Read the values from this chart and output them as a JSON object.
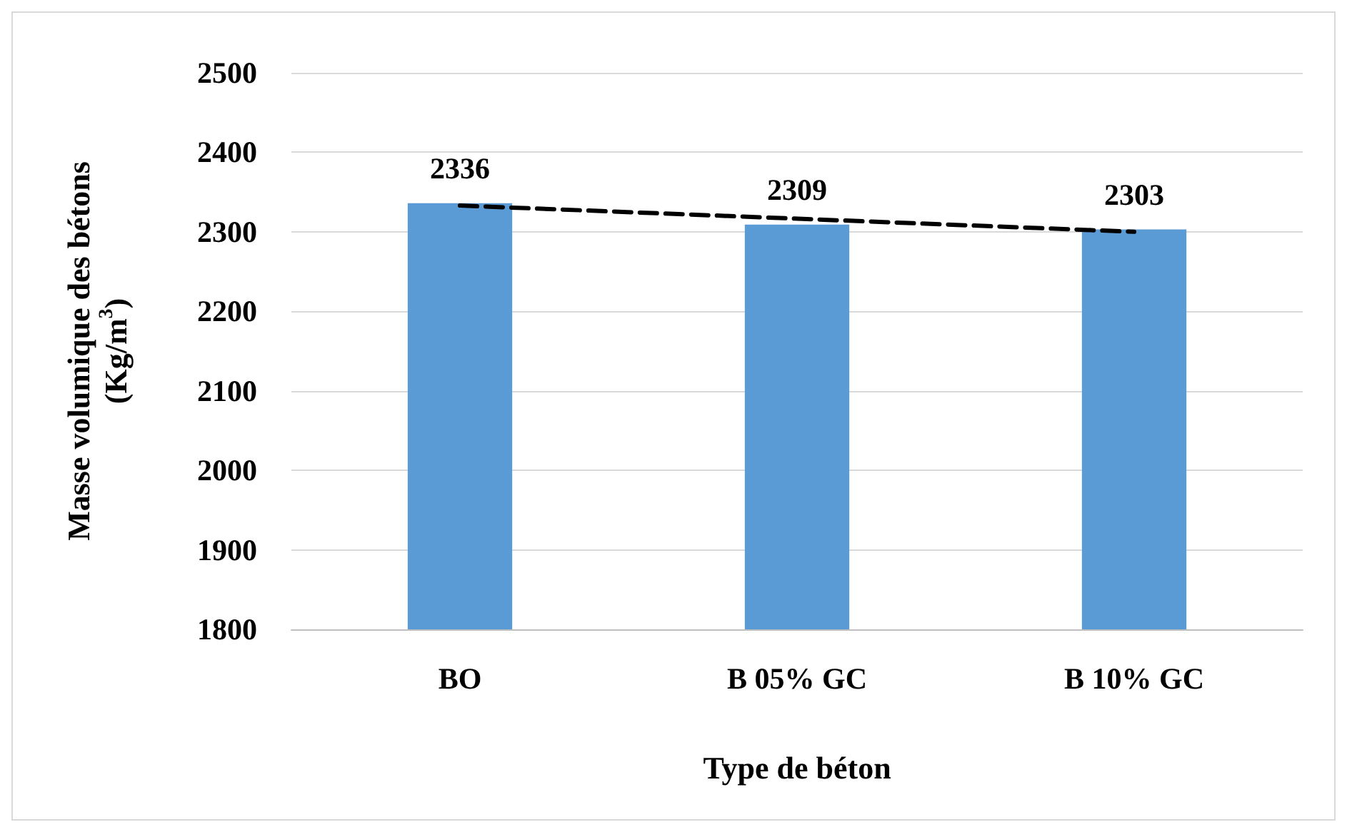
{
  "chart_data": {
    "type": "bar",
    "xlabel": "Type de béton",
    "ylabel": "Masse volumique des bétons (Kg/m$^{3}$)",
    "categories": [
      "BO",
      "B 05% GC",
      "B 10% GC"
    ],
    "series": [
      {
        "color": "#5b9bd5",
        "values": [
          2336,
          2309,
          2303
        ],
        "value_labels": [
          "2336",
          "2309",
          "2303"
        ]
      },
      {
        "type": "line",
        "x": [
          "BO",
          "B 10% GC"
        ],
        "values": [
          2333,
          2300
        ],
        "color": "#000000",
        "line_style": "dashed",
        "marker": "none"
      }
    ],
    "ylim": [
      1800,
      2500
    ],
    "yticks": [
      1800,
      1900,
      2000,
      2100,
      2200,
      2300,
      2400,
      2500
    ],
    "grid": "y"
  }
}
